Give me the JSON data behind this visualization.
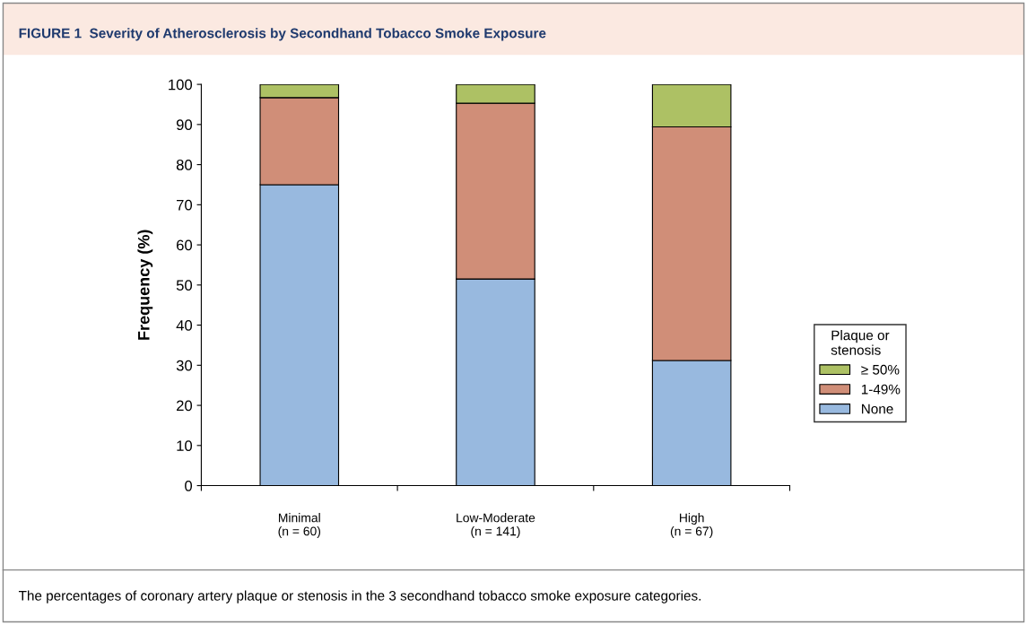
{
  "chart_data": {
    "type": "bar",
    "stacked": true,
    "title": "FIGURE 1  Severity of Atherosclerosis by Secondhand Tobacco Smoke Exposure",
    "ylabel": "Frequency (%)",
    "categories": [
      "Minimal\n(n = 60)",
      "Low-Moderate\n(n = 141)",
      "High\n(n = 67)"
    ],
    "series": [
      {
        "name": "None",
        "color": "#98b9df",
        "values": [
          75.0,
          51.5,
          31.2
        ]
      },
      {
        "name": "1-49%",
        "color": "#d08e78",
        "values": [
          21.7,
          43.8,
          58.2
        ]
      },
      {
        "name": "≥ 50%",
        "color": "#adc164",
        "values": [
          3.3,
          4.7,
          10.6
        ]
      }
    ],
    "ylim": [
      0,
      100
    ],
    "yticks": [
      0,
      10,
      20,
      30,
      40,
      50,
      60,
      70,
      80,
      90,
      100
    ],
    "grid": false,
    "legend": "right",
    "legend_title": "Plaque or\nstenosis",
    "annotations": [
      "The percentages of coronary artery plaque or stenosis in the 3 secondhand tobacco smoke exposure categories."
    ]
  }
}
